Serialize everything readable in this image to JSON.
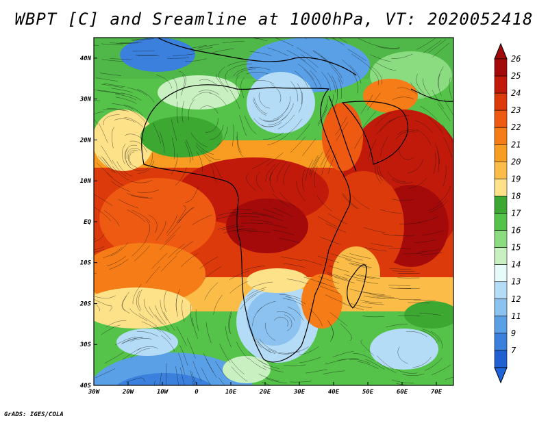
{
  "title": "WBPT [C] and Sreamline at 1000hPa, VT: 2020052418",
  "credit": "GrADS: IGES/COLA",
  "map": {
    "lon_range": [
      -30,
      75
    ],
    "lat_range": [
      -40,
      45
    ],
    "lon_ticks": [
      {
        "value": -30,
        "label": "30W"
      },
      {
        "value": -20,
        "label": "20W"
      },
      {
        "value": -10,
        "label": "10W"
      },
      {
        "value": 0,
        "label": "0"
      },
      {
        "value": 10,
        "label": "10E"
      },
      {
        "value": 20,
        "label": "20E"
      },
      {
        "value": 30,
        "label": "30E"
      },
      {
        "value": 40,
        "label": "40E"
      },
      {
        "value": 50,
        "label": "50E"
      },
      {
        "value": 60,
        "label": "60E"
      },
      {
        "value": 70,
        "label": "70E"
      }
    ],
    "lat_ticks": [
      {
        "value": 40,
        "label": "40N"
      },
      {
        "value": 30,
        "label": "30N"
      },
      {
        "value": 20,
        "label": "20N"
      },
      {
        "value": 10,
        "label": "10N"
      },
      {
        "value": 0,
        "label": "EQ"
      },
      {
        "value": -10,
        "label": "10S"
      },
      {
        "value": -20,
        "label": "20S"
      },
      {
        "value": -30,
        "label": "30S"
      },
      {
        "value": -40,
        "label": "40S"
      }
    ]
  },
  "colorbar": {
    "levels": [
      "26",
      "25",
      "24",
      "23",
      "22",
      "21",
      "20",
      "19",
      "18",
      "17",
      "16",
      "15",
      "14",
      "13",
      "12",
      "11",
      "9",
      "7"
    ],
    "colors": [
      "#a50a0a",
      "#c21a0a",
      "#dd3a0c",
      "#ee5a12",
      "#f57c16",
      "#f89c22",
      "#fbbd47",
      "#fde28a",
      "#3ca832",
      "#55c24a",
      "#8bdc80",
      "#c8f0c0",
      "#e8fbfb",
      "#b4dcf6",
      "#8cc2f0",
      "#5aa0e6",
      "#3a80dc",
      "#2060d2"
    ],
    "top_color": "#a00a0a",
    "bottom_color": "#1e64dc"
  }
}
